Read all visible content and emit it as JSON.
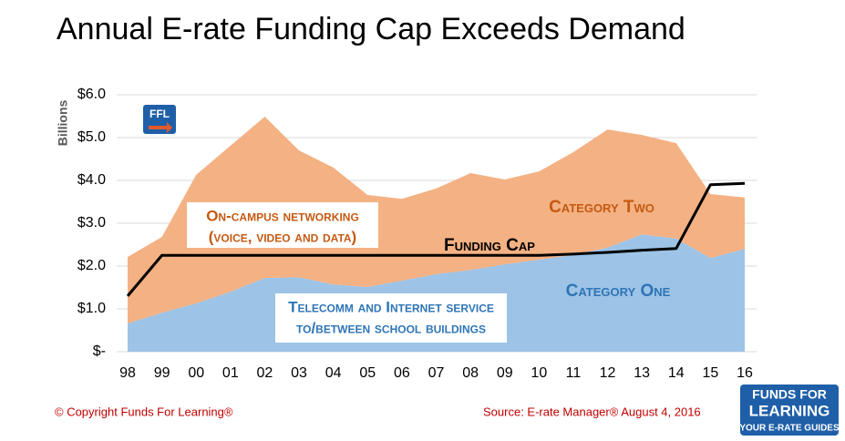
{
  "chart_data": {
    "type": "area",
    "title": "Annual E-rate Funding Cap Exceeds Demand",
    "y_label": "Billions",
    "categories": [
      "98",
      "99",
      "00",
      "01",
      "02",
      "03",
      "04",
      "05",
      "06",
      "07",
      "08",
      "09",
      "10",
      "11",
      "12",
      "13",
      "14",
      "15",
      "16"
    ],
    "series": [
      {
        "name": "Category One",
        "color": "#9dc3e6",
        "label_color": "#2e75b6",
        "values": [
          0.66,
          0.91,
          1.13,
          1.4,
          1.72,
          1.74,
          1.57,
          1.51,
          1.66,
          1.81,
          1.91,
          2.04,
          2.15,
          2.26,
          2.43,
          2.74,
          2.64,
          2.19,
          2.4
        ]
      },
      {
        "name": "Category Two",
        "color": "#f4b183",
        "label_color": "#c55a11",
        "values": [
          1.55,
          1.77,
          3.0,
          3.41,
          3.77,
          2.96,
          2.73,
          2.15,
          1.91,
          2.0,
          2.26,
          1.98,
          2.06,
          2.4,
          2.76,
          2.32,
          2.23,
          1.49,
          1.2
        ]
      },
      {
        "name": "Funding Cap",
        "type": "line",
        "color": "#000000",
        "label_color": "#000000",
        "values": [
          1.3,
          2.25,
          2.25,
          2.25,
          2.25,
          2.25,
          2.25,
          2.25,
          2.25,
          2.25,
          2.25,
          2.25,
          2.25,
          2.28,
          2.32,
          2.37,
          2.41,
          3.9,
          3.93
        ]
      }
    ],
    "annotations": [
      "On-campus networking",
      "(voice, video and data)",
      "Telecomm and Internet service",
      "to/between school buildings"
    ],
    "ylim": [
      0,
      6
    ],
    "yticks": [
      {
        "value": 0,
        "label": "$-"
      },
      {
        "value": 1,
        "label": "$1.0"
      },
      {
        "value": 2,
        "label": "$2.0"
      },
      {
        "value": 3,
        "label": "$3.0"
      },
      {
        "value": 4,
        "label": "$4.0"
      },
      {
        "value": 5,
        "label": "$5.0"
      },
      {
        "value": 6,
        "label": "$6.0"
      }
    ],
    "grid": true
  },
  "footer": {
    "copyright": "© Copyright Funds For Learning®",
    "source": "Source: E-rate Manager®  August 4, 2016"
  },
  "logo": {
    "badge": "FFL",
    "line1": "FUNDS FOR",
    "line2": "LEARNING",
    "tagline": "YOUR E-RATE GUIDES"
  }
}
